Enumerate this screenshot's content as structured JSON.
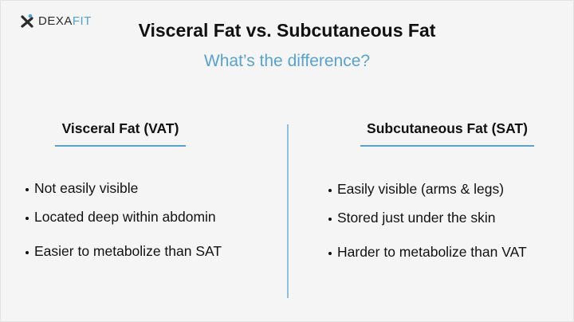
{
  "logo": {
    "brand": "DEXA",
    "accent": "FIT"
  },
  "header": {
    "title": "Visceral Fat vs. Subcutaneous Fat",
    "subtitle": "What’s the difference?"
  },
  "columns": [
    {
      "heading": "Visceral Fat (VAT)",
      "items": [
        "Not easily visible",
        "Located deep within abdomin",
        "Easier to metabolize than SAT"
      ]
    },
    {
      "heading": "Subcutaneous Fat (SAT)",
      "items": [
        "Easily visible (arms & legs)",
        "Stored just under the skin",
        "Harder to metabolize than VAT"
      ]
    }
  ]
}
